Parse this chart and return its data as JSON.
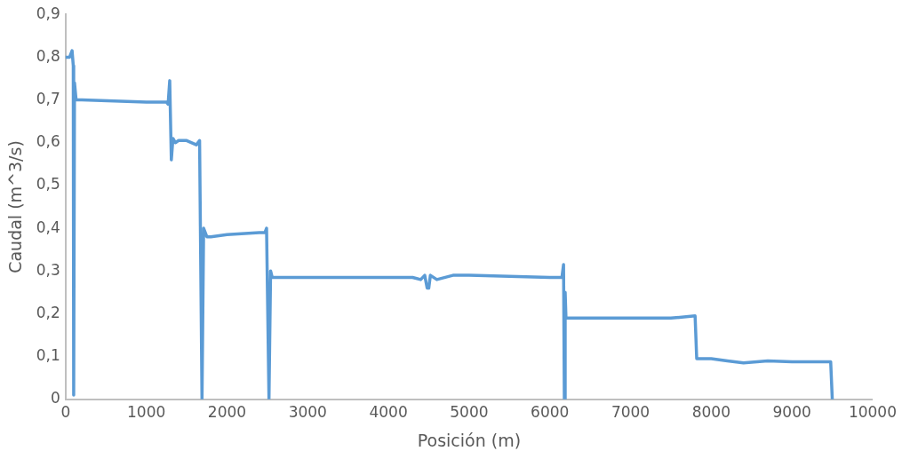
{
  "chart_data": {
    "type": "line",
    "xlabel": "Posición (m)",
    "ylabel": "Caudal (m^3/s)",
    "color": "#5b9bd5",
    "marker": "none",
    "grid": false,
    "legend": false,
    "x": [
      0,
      50,
      80,
      95,
      100,
      110,
      130,
      200,
      1000,
      1250,
      1270,
      1290,
      1310,
      1330,
      1360,
      1400,
      1500,
      1620,
      1660,
      1690,
      1710,
      1750,
      1800,
      2000,
      2400,
      2470,
      2490,
      2520,
      2540,
      2560,
      3000,
      4000,
      4300,
      4400,
      4450,
      4480,
      4500,
      4520,
      4600,
      4800,
      5000,
      6000,
      6150,
      6170,
      6180,
      6190,
      6200,
      6500,
      7500,
      7800,
      7820,
      8000,
      8200,
      8400,
      8700,
      9000,
      9480,
      9500
    ],
    "values": [
      0.8,
      0.8,
      0.815,
      0.78,
      0.01,
      0.74,
      0.7,
      0.7,
      0.695,
      0.695,
      0.69,
      0.745,
      0.56,
      0.61,
      0.6,
      0.605,
      0.605,
      0.595,
      0.605,
      0,
      0.4,
      0.38,
      0.38,
      0.385,
      0.39,
      0.39,
      0.4,
      0,
      0.3,
      0.285,
      0.285,
      0.285,
      0.285,
      0.28,
      0.29,
      0.26,
      0.26,
      0.29,
      0.28,
      0.29,
      0.29,
      0.285,
      0.285,
      0.315,
      0,
      0.25,
      0.19,
      0.19,
      0.19,
      0.195,
      0.095,
      0.095,
      0.09,
      0.085,
      0.09,
      0.088,
      0.088,
      0
    ],
    "xlim": [
      0,
      10000
    ],
    "xticks": [
      0,
      1000,
      2000,
      3000,
      4000,
      5000,
      6000,
      7000,
      8000,
      9000,
      10000
    ],
    "ylim": [
      0,
      0.9
    ],
    "yticks": [
      0,
      {
        "value": 0.1,
        "label": "0,1"
      },
      {
        "value": 0.2,
        "label": "0,2"
      },
      {
        "value": 0.3,
        "label": "0,3"
      },
      {
        "value": 0.4,
        "label": "0,4"
      },
      {
        "value": 0.5,
        "label": "0,5"
      },
      {
        "value": 0.6,
        "label": "0,6"
      },
      {
        "value": 0.7,
        "label": "0,7"
      },
      {
        "value": 0.8,
        "label": "0,8"
      },
      {
        "value": 0.9,
        "label": "0,9"
      }
    ]
  }
}
